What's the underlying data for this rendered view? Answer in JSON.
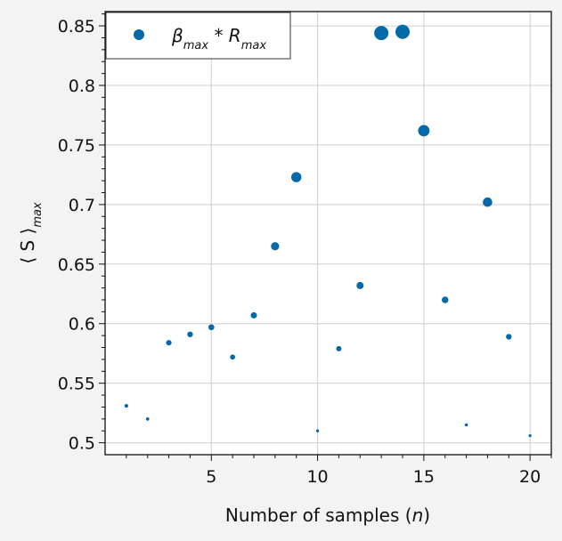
{
  "chart_data": {
    "type": "scatter",
    "title": "",
    "xlabel": "Number of samples (n)",
    "xlabel_parts": [
      "Number of samples (",
      "n",
      ")"
    ],
    "ylabel": "⟨S⟩max",
    "ylabel_parts": [
      "⟨ S ⟩",
      "max"
    ],
    "xlim": [
      0,
      21
    ],
    "ylim": [
      0.49,
      0.862
    ],
    "xticks": [
      5,
      10,
      15,
      20
    ],
    "yticks": [
      0.5,
      0.55,
      0.6,
      0.65,
      0.7,
      0.75,
      0.8,
      0.85
    ],
    "ytick_labels": [
      "0.5",
      "0.55",
      "0.6",
      "0.65",
      "0.7",
      "0.75",
      "0.8",
      "0.85"
    ],
    "grid": true,
    "legend": {
      "location": "top-left",
      "label": "βmax * Rmax",
      "parts": {
        "beta": "β",
        "beta_sub": "max",
        "mid": " * R",
        "r_sub": "max"
      }
    },
    "marker_color": "#0369a9",
    "series": [
      {
        "name": "βmax * Rmax",
        "x": [
          1,
          2,
          3,
          4,
          5,
          6,
          7,
          8,
          9,
          10,
          11,
          12,
          13,
          14,
          15,
          16,
          17,
          18,
          19,
          20
        ],
        "y": [
          0.531,
          0.52,
          0.584,
          0.591,
          0.597,
          0.572,
          0.607,
          0.665,
          0.723,
          0.51,
          0.579,
          0.632,
          0.844,
          0.845,
          0.762,
          0.62,
          0.515,
          0.702,
          0.589,
          0.506
        ]
      }
    ]
  }
}
